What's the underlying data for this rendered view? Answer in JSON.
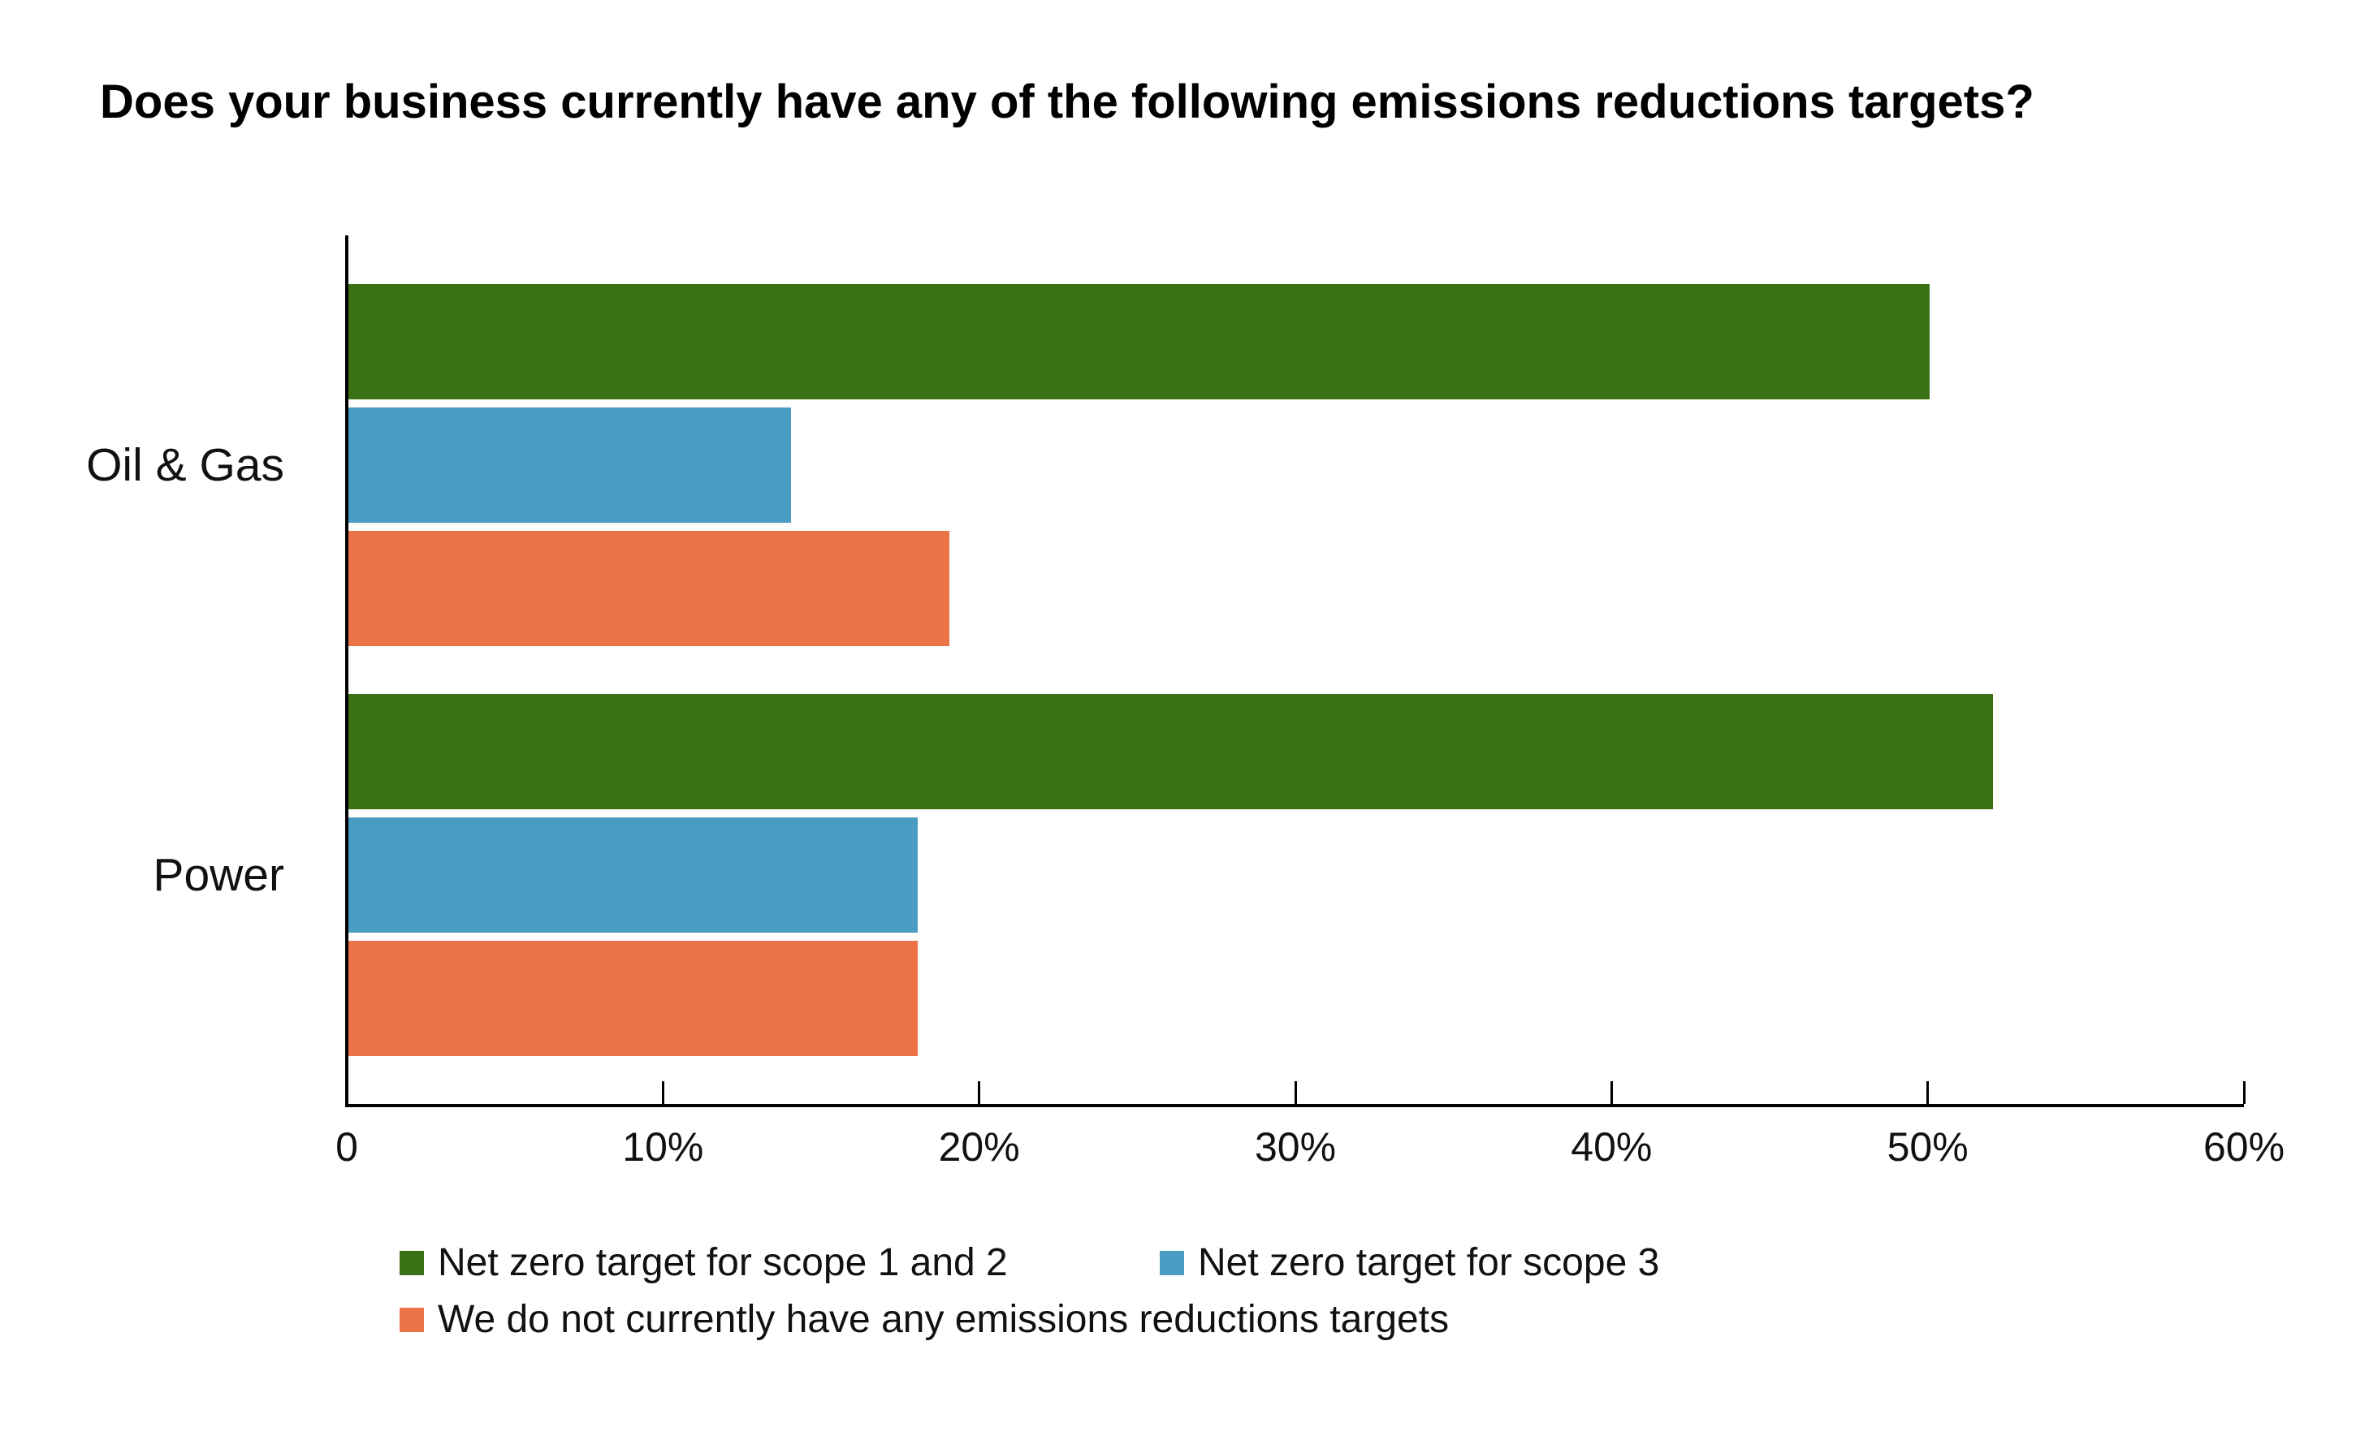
{
  "title": "Does your business currently have any of the following emissions reductions targets?",
  "chart_data": {
    "type": "bar",
    "orientation": "horizontal",
    "title": "Does your business currently have any of the following emissions reductions targets?",
    "categories": [
      "Oil & Gas",
      "Power"
    ],
    "series": [
      {
        "name": "Net zero target for scope 1 and 2",
        "color": "#3a7117",
        "values": [
          50,
          52
        ]
      },
      {
        "name": "Net zero target for scope 3",
        "color": "#4a9cc3",
        "values": [
          14,
          18
        ]
      },
      {
        "name": "We do not currently have any emissions reductions targets",
        "color": "#ec7248",
        "values": [
          19,
          18
        ]
      }
    ],
    "xlim": [
      0,
      60
    ],
    "x_tick_values": [
      0,
      10,
      20,
      30,
      40,
      50,
      60
    ],
    "x_tick_labels": [
      "0",
      "10%",
      "20%",
      "30%",
      "40%",
      "50%",
      "60%"
    ],
    "xlabel": "",
    "ylabel": "",
    "grid": false,
    "legend_position": "bottom"
  }
}
